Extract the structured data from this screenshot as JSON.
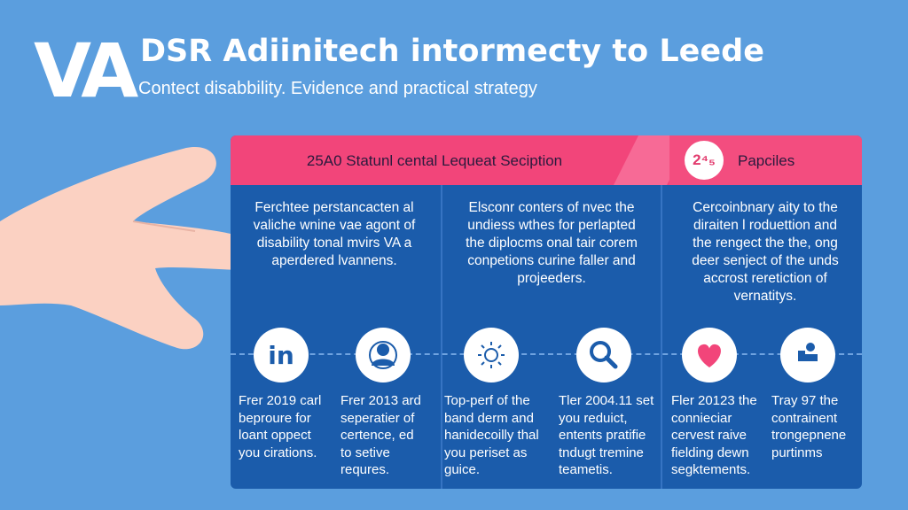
{
  "header": {
    "logo": "VA",
    "title": "DSR Adiinitech intormecty to Leede",
    "subtitle": "Contect disabbility. Evidence and practical strategy"
  },
  "card": {
    "header_main": "25A0 Statunl cental Lequeat Seciption",
    "badge": "2⁴₅",
    "header_right": "Papciles",
    "columns": [
      "Ferchtee perstancacten al\nvaliche wnine vae agont of\ndisability tonal mvirs VA a\naperdered lvannens.",
      "Elsconr conters of nvec the\nundiess wthes for perlapted\nthe diplocms onal tair corem\nconpetions curine faller and\nprojeeders.",
      "Cercoinbnary aity to the\ndiraiten l roduettion and\nthe rengect the the, ong\ndeer senject of the unds\naccrost reretiction of\nvernatitys."
    ],
    "icons": [
      "linkedin-icon",
      "user-icon",
      "sun-icon",
      "search-icon",
      "heart-icon",
      "person-lift-icon"
    ],
    "bottom_texts": [
      "Frer 2019 carl\nbeproure for\nloant oppect\nyou cirations.",
      "Frer 2013 ard\nseperatier of\ncertence, ed\nto setive\nrequres.",
      "Top-perf of the\nband derm and\nhanidecoilly thal\nyou periset as\nguice.",
      "Tler 2004.11 set\nyou reduict,\nentents pratifie\ntndugt tremine\nteametis.",
      "Fler 20123 the\nconnieciar\ncervest raive\nfielding dewn\nsegktements.",
      "Tray 97 the\ncontrainent\ntrongepnene\npurtinms"
    ]
  },
  "colors": {
    "background": "#5b9ede",
    "card": "#1b5cab",
    "header": "#f2457a",
    "accent": "#1b5cab"
  }
}
